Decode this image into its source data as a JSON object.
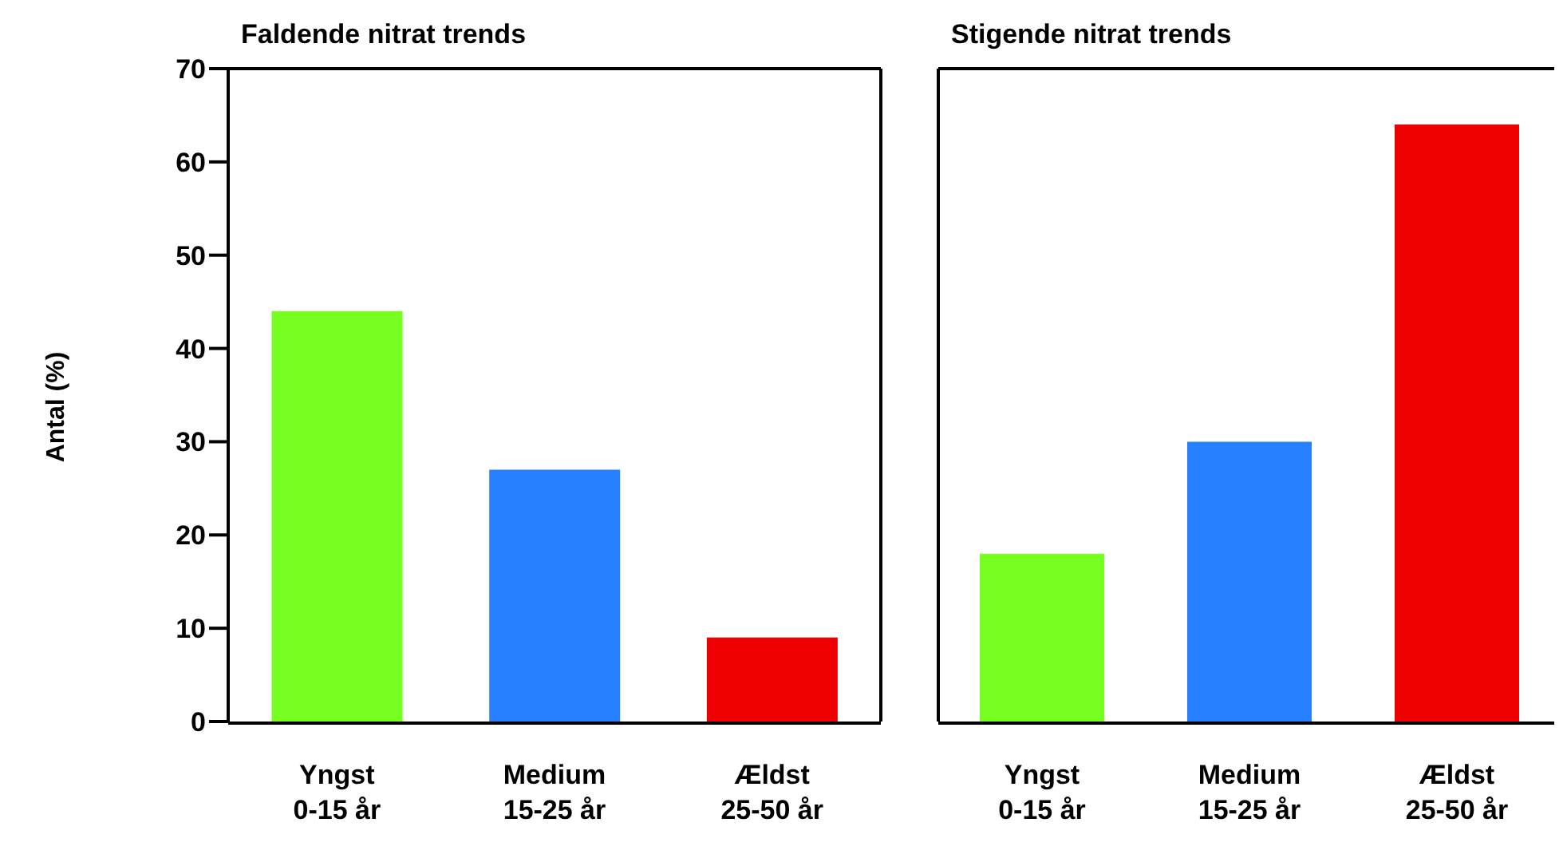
{
  "chart_data": [
    {
      "type": "bar",
      "title": "Faldende nitrat trends",
      "ylabel": "Antal (%)",
      "categories": [
        "Yngst\n0-15 år",
        "Medium\n15-25 år",
        "Ældst\n25-50 år"
      ],
      "values": [
        44,
        27,
        9
      ],
      "colors": [
        "#77ff22",
        "#2680ff",
        "#ee0000"
      ],
      "ylim": [
        0,
        70
      ],
      "yticks": [
        0,
        10,
        20,
        30,
        40,
        50,
        60,
        70
      ],
      "grid": false
    },
    {
      "type": "bar",
      "title": "Stigende nitrat trends",
      "categories": [
        "Yngst\n0-15 år",
        "Medium\n15-25 år",
        "Ældst\n25-50 år"
      ],
      "values": [
        18,
        30,
        64
      ],
      "colors": [
        "#77ff22",
        "#2680ff",
        "#ee0000"
      ],
      "ylim": [
        0,
        70
      ],
      "yticks": [
        0,
        10,
        20,
        30,
        40,
        50,
        60,
        70
      ],
      "grid": false,
      "tick_labels": "x"
    }
  ]
}
